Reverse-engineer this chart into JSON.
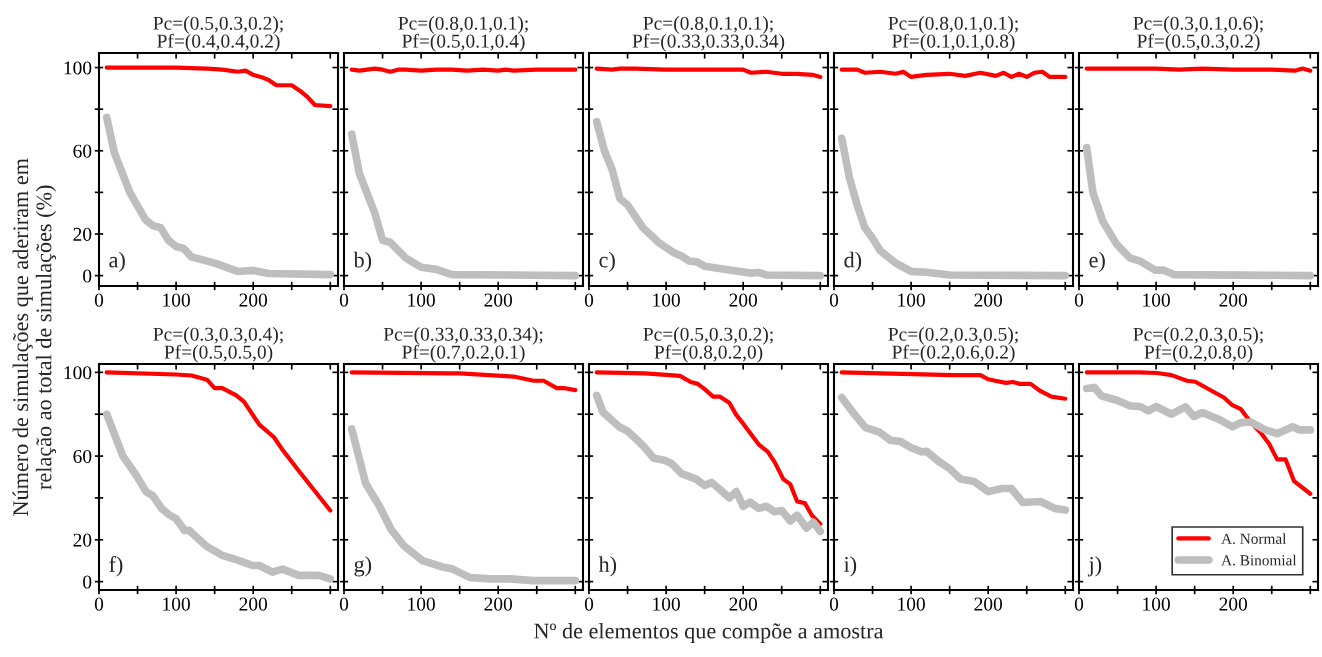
{
  "chart_data": [
    {
      "type": "line",
      "title": "Pc=(0.5,0.3,0.2);\nPf=(0.4,0.4,0.2)",
      "ylabel": "Número de simulações que aderiram em\nrelação ao total de simulações (%)",
      "annotations": [
        "a)"
      ],
      "xlim": [
        0,
        310
      ],
      "ylim": [
        -5,
        107
      ],
      "xticks": [
        0,
        {
          "value": 50,
          "label": null
        },
        100,
        {
          "value": 150,
          "label": null
        },
        200,
        {
          "value": 250,
          "label": null
        },
        {
          "value": 300,
          "label": null
        }
      ],
      "yticks": [
        0,
        20,
        {
          "value": 40,
          "label": null
        },
        60,
        {
          "value": 80,
          "label": null
        },
        100
      ],
      "series": [
        {
          "color": "#ff0000",
          "x": [
            10,
            50,
            100,
            140,
            160,
            180,
            190,
            200,
            210,
            220,
            230,
            250,
            260,
            270,
            280,
            300
          ],
          "values": [
            100,
            100,
            100,
            99.5,
            99,
            98,
            98.5,
            96.5,
            95.5,
            94,
            91.5,
            91.5,
            89,
            86,
            82,
            81.5
          ]
        },
        {
          "color": "#bebebe",
          "x": [
            10,
            20,
            40,
            60,
            70,
            80,
            90,
            100,
            110,
            120,
            150,
            180,
            200,
            220,
            300
          ],
          "values": [
            76,
            59,
            40,
            27,
            24,
            23,
            17,
            14,
            13,
            9,
            6,
            2,
            2.5,
            1,
            0.5
          ]
        }
      ]
    },
    {
      "type": "line",
      "title": "Pc=(0.8,0.1,0.1);\nPf=(0.5,0.1,0.4)",
      "annotations": [
        "b)"
      ],
      "tick_labels": "x",
      "xlim": [
        0,
        310
      ],
      "ylim": [
        -5,
        107
      ],
      "xticks": [
        0,
        {
          "value": 50,
          "label": null
        },
        100,
        {
          "value": 150,
          "label": null
        },
        200,
        {
          "value": 250,
          "label": null
        },
        {
          "value": 300,
          "label": null
        }
      ],
      "yticks": [
        0,
        {
          "value": 20,
          "label": null
        },
        {
          "value": 40,
          "label": null
        },
        {
          "value": 60,
          "label": null
        },
        {
          "value": 80,
          "label": null
        },
        {
          "value": 100,
          "label": null
        }
      ],
      "series": [
        {
          "color": "#ff0000",
          "x": [
            10,
            20,
            30,
            40,
            50,
            60,
            70,
            80,
            100,
            120,
            140,
            160,
            180,
            200,
            210,
            220,
            250,
            270,
            300
          ],
          "values": [
            99,
            98.5,
            99,
            99.5,
            99,
            98,
            99,
            99,
            98.5,
            99,
            99,
            98.5,
            99,
            98.5,
            99,
            98.5,
            99,
            99,
            99
          ]
        },
        {
          "color": "#bebebe",
          "x": [
            10,
            20,
            40,
            50,
            60,
            80,
            100,
            120,
            140,
            300
          ],
          "values": [
            68,
            49,
            30,
            17,
            16,
            8.5,
            4,
            3,
            0.5,
            0
          ]
        }
      ]
    },
    {
      "type": "line",
      "title": "Pc=(0.8,0.1,0.1);\nPf=(0.33,0.33,0.34)",
      "annotations": [
        "c)"
      ],
      "tick_labels": "x",
      "xlim": [
        0,
        310
      ],
      "ylim": [
        -5,
        107
      ],
      "xticks": [
        0,
        {
          "value": 50,
          "label": null
        },
        100,
        {
          "value": 150,
          "label": null
        },
        200,
        {
          "value": 250,
          "label": null
        },
        {
          "value": 300,
          "label": null
        }
      ],
      "yticks": [
        0,
        {
          "value": 20,
          "label": null
        },
        {
          "value": 40,
          "label": null
        },
        {
          "value": 60,
          "label": null
        },
        {
          "value": 80,
          "label": null
        },
        {
          "value": 100,
          "label": null
        }
      ],
      "series": [
        {
          "color": "#ff0000",
          "x": [
            10,
            30,
            40,
            60,
            100,
            200,
            210,
            230,
            250,
            270,
            290,
            300
          ],
          "values": [
            99.5,
            99,
            99.5,
            99.5,
            99,
            99,
            97.5,
            98,
            97,
            97,
            96.5,
            95.5
          ]
        },
        {
          "color": "#bebebe",
          "x": [
            10,
            20,
            30,
            40,
            50,
            70,
            90,
            110,
            120,
            130,
            140,
            150,
            180,
            210,
            220,
            230,
            300
          ],
          "values": [
            74,
            60,
            51,
            37,
            34,
            23,
            16,
            11,
            9.4,
            7,
            6.6,
            4.5,
            2.8,
            1.2,
            1.5,
            0.3,
            0
          ]
        }
      ]
    },
    {
      "type": "line",
      "title": "Pc=(0.8,0.1,0.1);\nPf=(0.1,0.1,0.8)",
      "annotations": [
        "d)"
      ],
      "tick_labels": "x",
      "xlim": [
        0,
        310
      ],
      "ylim": [
        -5,
        107
      ],
      "xticks": [
        0,
        {
          "value": 50,
          "label": null
        },
        100,
        {
          "value": 150,
          "label": null
        },
        200,
        {
          "value": 250,
          "label": null
        },
        {
          "value": 300,
          "label": null
        }
      ],
      "yticks": [
        0,
        {
          "value": 20,
          "label": null
        },
        {
          "value": 40,
          "label": null
        },
        {
          "value": 60,
          "label": null
        },
        {
          "value": 80,
          "label": null
        },
        {
          "value": 100,
          "label": null
        }
      ],
      "series": [
        {
          "color": "#ff0000",
          "x": [
            10,
            30,
            40,
            60,
            80,
            90,
            100,
            120,
            150,
            170,
            190,
            210,
            220,
            230,
            240,
            250,
            260,
            270,
            280,
            300
          ],
          "values": [
            99,
            99,
            97.5,
            98,
            97,
            98,
            95.5,
            96.5,
            97,
            96,
            97.5,
            96,
            97.5,
            95.5,
            97,
            95.5,
            97.5,
            98,
            95.5,
            95.5
          ]
        },
        {
          "color": "#bebebe",
          "x": [
            10,
            20,
            30,
            40,
            50,
            60,
            80,
            100,
            120,
            150,
            300
          ],
          "values": [
            66,
            47,
            34,
            23,
            18,
            12,
            6,
            2,
            1.6,
            0.3,
            0
          ]
        }
      ]
    },
    {
      "type": "line",
      "title": "Pc=(0.3,0.1,0.6);\nPf=(0.5,0.3,0.2)",
      "annotations": [
        "e)"
      ],
      "tick_labels": "x",
      "xlim": [
        0,
        310
      ],
      "ylim": [
        -5,
        107
      ],
      "xticks": [
        0,
        {
          "value": 50,
          "label": null
        },
        100,
        {
          "value": 150,
          "label": null
        },
        200,
        {
          "value": 250,
          "label": null
        },
        {
          "value": 300,
          "label": null
        }
      ],
      "yticks": [
        0,
        {
          "value": 20,
          "label": null
        },
        {
          "value": 40,
          "label": null
        },
        {
          "value": 60,
          "label": null
        },
        {
          "value": 80,
          "label": null
        },
        {
          "value": 100,
          "label": null
        }
      ],
      "series": [
        {
          "color": "#ff0000",
          "x": [
            10,
            50,
            100,
            130,
            160,
            200,
            250,
            280,
            290,
            300
          ],
          "values": [
            99.5,
            99.5,
            99.5,
            99,
            99.5,
            99,
            99,
            98.5,
            99.5,
            98.5
          ]
        },
        {
          "color": "#bebebe",
          "x": [
            10,
            18,
            31,
            49,
            66,
            79,
            99,
            110,
            123,
            300
          ],
          "values": [
            61.5,
            40,
            26,
            15,
            8.5,
            7,
            2.6,
            2.6,
            0.5,
            0
          ]
        }
      ]
    },
    {
      "type": "line",
      "title": "Pc=(0.3,0.3,0.4);\nPf=(0.5,0.5,0)",
      "annotations": [
        "f)"
      ],
      "xlim": [
        0,
        310
      ],
      "ylim": [
        -4,
        104
      ],
      "xticks": [
        0,
        {
          "value": 50,
          "label": null
        },
        100,
        {
          "value": 150,
          "label": null
        },
        200,
        {
          "value": 250,
          "label": null
        },
        {
          "value": 300,
          "label": null
        }
      ],
      "yticks": [
        0,
        20,
        {
          "value": 40,
          "label": null
        },
        60,
        {
          "value": 80,
          "label": null
        },
        100
      ],
      "series": [
        {
          "color": "#ff0000",
          "x": [
            10,
            100,
            120,
            140,
            150,
            160,
            178,
            188,
            208,
            227,
            238,
            259,
            300
          ],
          "values": [
            100,
            99,
            98.5,
            96.5,
            92.5,
            92.5,
            89,
            86,
            75,
            69,
            63,
            53,
            34
          ]
        },
        {
          "color": "#bebebe",
          "x": [
            10,
            31,
            48,
            61,
            70,
            81,
            91,
            100,
            111,
            117,
            139,
            160,
            182,
            199,
            208,
            225,
            238,
            259,
            285,
            300
          ],
          "values": [
            80,
            60,
            51,
            43,
            41,
            35,
            32,
            30,
            24.5,
            24.5,
            17,
            12.5,
            10,
            7.7,
            7.7,
            4.5,
            6,
            3,
            3,
            1.3
          ]
        }
      ]
    },
    {
      "type": "line",
      "title": "Pc=(0.33,0.33,0.34);\nPf=(0.7,0.2,0.1)",
      "annotations": [
        "g)"
      ],
      "tick_labels": "x",
      "xlim": [
        0,
        310
      ],
      "ylim": [
        -4,
        104
      ],
      "xticks": [
        0,
        {
          "value": 50,
          "label": null
        },
        100,
        {
          "value": 150,
          "label": null
        },
        200,
        {
          "value": 250,
          "label": null
        },
        {
          "value": 300,
          "label": null
        }
      ],
      "yticks": [
        0,
        {
          "value": 20,
          "label": null
        },
        {
          "value": 40,
          "label": null
        },
        {
          "value": 60,
          "label": null
        },
        {
          "value": 80,
          "label": null
        },
        {
          "value": 100,
          "label": null
        }
      ],
      "series": [
        {
          "color": "#ff0000",
          "x": [
            10,
            140,
            150,
            220,
            246,
            259,
            276,
            285,
            300
          ],
          "values": [
            100,
            99.5,
            99.5,
            98,
            96,
            96,
            92.5,
            92.5,
            91.5
          ]
        },
        {
          "color": "#bebebe",
          "x": [
            10,
            28,
            46,
            61,
            78,
            102,
            128,
            141,
            163,
            189,
            215,
            246,
            300
          ],
          "values": [
            73,
            47,
            36,
            25,
            17,
            10,
            7,
            6,
            2,
            1.3,
            1.3,
            0.5,
            0.5
          ]
        }
      ]
    },
    {
      "type": "line",
      "title": "Pc=(0.5,0.3,0.2);\nPf=(0.8,0.2,0)",
      "xlabel": "Nº de elementos que compõe a amostra",
      "annotations": [
        "h)"
      ],
      "tick_labels": "x",
      "xlim": [
        0,
        310
      ],
      "ylim": [
        -4,
        104
      ],
      "xticks": [
        0,
        {
          "value": 50,
          "label": null
        },
        100,
        {
          "value": 150,
          "label": null
        },
        200,
        {
          "value": 250,
          "label": null
        },
        {
          "value": 300,
          "label": null
        }
      ],
      "yticks": [
        0,
        {
          "value": 20,
          "label": null
        },
        {
          "value": 40,
          "label": null
        },
        {
          "value": 60,
          "label": null
        },
        {
          "value": 80,
          "label": null
        },
        {
          "value": 100,
          "label": null
        }
      ],
      "series": [
        {
          "color": "#ff0000",
          "x": [
            10,
            73,
            118,
            132,
            141,
            150,
            161,
            170,
            182,
            191,
            200,
            220,
            232,
            241,
            252,
            261,
            270,
            280,
            289,
            300
          ],
          "values": [
            100,
            99.5,
            98.3,
            95.4,
            94.5,
            92,
            88.4,
            88.4,
            85.5,
            79.7,
            75.5,
            65.6,
            62,
            57,
            49,
            46.6,
            38.3,
            37.5,
            31.7,
            27.6
          ]
        },
        {
          "color": "#bebebe",
          "x": [
            10,
            18,
            39,
            50,
            70,
            84,
            98,
            107,
            120,
            139,
            150,
            159,
            170,
            182,
            191,
            200,
            209,
            220,
            230,
            241,
            250,
            261,
            270,
            282,
            291,
            300
          ],
          "values": [
            89,
            81,
            74,
            72,
            65,
            59,
            58,
            56.5,
            51.6,
            49,
            46,
            47.4,
            44,
            40,
            43,
            36,
            38,
            35,
            36,
            33.4,
            34,
            29,
            31.7,
            25.6,
            28.4,
            24
          ]
        }
      ]
    },
    {
      "type": "line",
      "title": "Pc=(0.2,0.3,0.5);\nPf=(0.2,0.6,0.2)",
      "annotations": [
        "i)"
      ],
      "tick_labels": "x",
      "xlim": [
        0,
        310
      ],
      "ylim": [
        -4,
        104
      ],
      "xticks": [
        0,
        {
          "value": 50,
          "label": null
        },
        100,
        {
          "value": 150,
          "label": null
        },
        200,
        {
          "value": 250,
          "label": null
        },
        {
          "value": 300,
          "label": null
        }
      ],
      "yticks": [
        0,
        {
          "value": 20,
          "label": null
        },
        {
          "value": 40,
          "label": null
        },
        {
          "value": 60,
          "label": null
        },
        {
          "value": 80,
          "label": null
        },
        {
          "value": 100,
          "label": null
        }
      ],
      "series": [
        {
          "color": "#ff0000",
          "x": [
            10,
            154,
            190,
            200,
            209,
            223,
            232,
            241,
            255,
            268,
            282,
            300
          ],
          "values": [
            100,
            98.7,
            98.7,
            96.7,
            96,
            95,
            95.4,
            94.5,
            94.5,
            91,
            88.4,
            87.4
          ]
        },
        {
          "color": "#bebebe",
          "x": [
            10,
            27,
            41,
            59,
            73,
            86,
            100,
            114,
            120,
            136,
            150,
            164,
            182,
            200,
            218,
            230,
            245,
            268,
            286,
            300
          ],
          "values": [
            88,
            79.7,
            73.6,
            71.4,
            67.6,
            67,
            64,
            62,
            62.3,
            57.4,
            54,
            49,
            47.8,
            43,
            44.5,
            44.5,
            37.8,
            38.3,
            35,
            34.2
          ]
        }
      ]
    },
    {
      "type": "line",
      "title": "Pc=(0.2,0.3,0.5);\nPf=(0.2,0.8,0)",
      "annotations": [
        "j)"
      ],
      "tick_labels": "x",
      "legend": "bottom right",
      "xlim": [
        0,
        310
      ],
      "ylim": [
        -4,
        104
      ],
      "xticks": [
        0,
        {
          "value": 50,
          "label": null
        },
        100,
        {
          "value": 150,
          "label": null
        },
        200,
        {
          "value": 250,
          "label": null
        },
        {
          "value": 300,
          "label": null
        }
      ],
      "yticks": [
        0,
        {
          "value": 20,
          "label": null
        },
        {
          "value": 40,
          "label": null
        },
        {
          "value": 60,
          "label": null
        },
        {
          "value": 80,
          "label": null
        },
        {
          "value": 100,
          "label": null
        }
      ],
      "series": [
        {
          "name": "A. Normal",
          "color": "#ff0000",
          "x": [
            10,
            79,
            101,
            120,
            140,
            151,
            173,
            188,
            199,
            210,
            223,
            236,
            247,
            257,
            268,
            279,
            300
          ],
          "values": [
            100,
            100,
            99.7,
            98.7,
            96,
            95.5,
            91,
            88,
            84.3,
            82.4,
            76,
            71,
            65.6,
            58.4,
            58.4,
            48,
            42
          ]
        },
        {
          "name": "A. Binomial",
          "color": "#bebebe",
          "x": [
            10,
            20,
            29,
            49,
            66,
            79,
            90,
            100,
            120,
            138,
            149,
            160,
            183,
            199,
            210,
            223,
            240,
            257,
            277,
            286,
            300
          ],
          "values": [
            92.3,
            92.8,
            88.8,
            86.7,
            84,
            83.7,
            81.6,
            83.7,
            80,
            83.5,
            78.9,
            80.8,
            77.3,
            74,
            76,
            76.3,
            72.8,
            70.7,
            74,
            72.5,
            72.5
          ]
        }
      ]
    }
  ]
}
